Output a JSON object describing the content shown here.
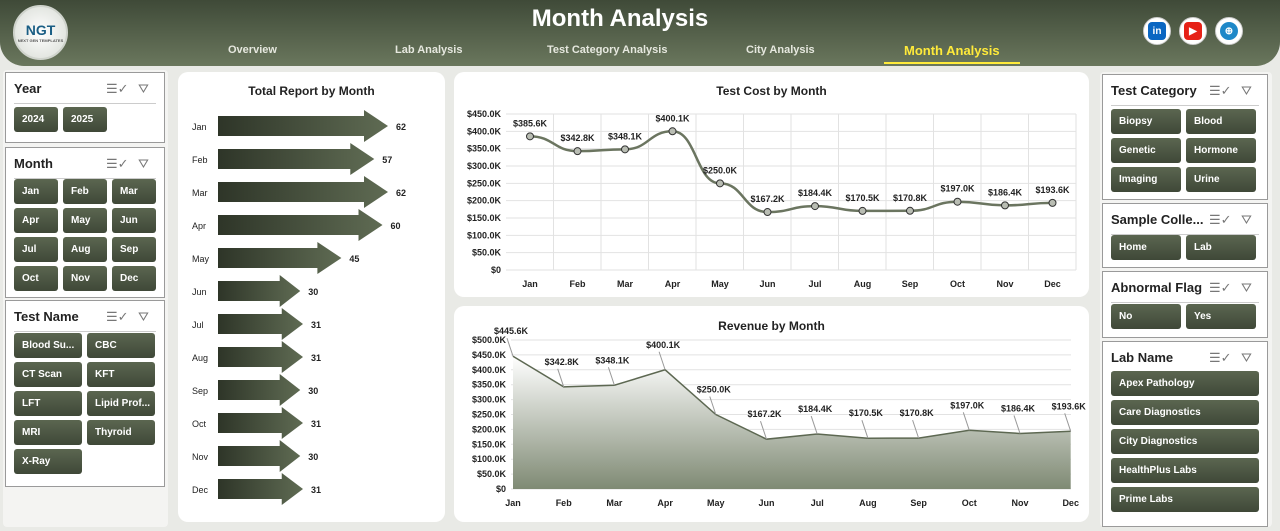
{
  "header": {
    "title": "Month Analysis",
    "logo_text": "NGT",
    "logo_sub": "NEXT GEN TEMPLATES",
    "nav": [
      {
        "label": "Overview"
      },
      {
        "label": "Lab Analysis"
      },
      {
        "label": "Test Category Analysis"
      },
      {
        "label": "City Analysis"
      },
      {
        "label": "Month Analysis",
        "active": true
      }
    ],
    "social": [
      {
        "icon": "linkedin-icon",
        "label": "in",
        "color": "#0a66c2"
      },
      {
        "icon": "youtube-icon",
        "label": "▶",
        "color": "#e62117"
      },
      {
        "icon": "globe-icon",
        "label": "⊕",
        "color": "#1e88c8"
      }
    ]
  },
  "slicers_left": [
    {
      "title": "Year",
      "items": [
        "2024",
        "2025"
      ]
    },
    {
      "title": "Month",
      "items": [
        "Jan",
        "Feb",
        "Mar",
        "Apr",
        "May",
        "Jun",
        "Jul",
        "Aug",
        "Sep",
        "Oct",
        "Nov",
        "Dec"
      ]
    },
    {
      "title": "Test Name",
      "items": [
        "Blood Su...",
        "CBC",
        "CT Scan",
        "KFT",
        "LFT",
        "Lipid Prof...",
        "MRI",
        "Thyroid",
        "X-Ray"
      ]
    }
  ],
  "slicers_right": [
    {
      "title": "Test Category",
      "items": [
        "Biopsy",
        "Blood",
        "Genetic",
        "Hormone",
        "Imaging",
        "Urine"
      ]
    },
    {
      "title": "Sample Colle...",
      "items": [
        "Home",
        "Lab"
      ]
    },
    {
      "title": "Abnormal Flag",
      "items": [
        "No",
        "Yes"
      ]
    },
    {
      "title": "Lab Name",
      "items": [
        "Apex Pathology",
        "Care Diagnostics",
        "City Diagnostics",
        "HealthPlus Labs",
        "Prime Labs"
      ]
    }
  ],
  "chart_data": [
    {
      "type": "bar",
      "title": "Total Report by Month",
      "orientation": "horizontal",
      "categories": [
        "Jan",
        "Feb",
        "Mar",
        "Apr",
        "May",
        "Jun",
        "Jul",
        "Aug",
        "Sep",
        "Oct",
        "Nov",
        "Dec"
      ],
      "values": [
        62,
        57,
        62,
        60,
        45,
        30,
        31,
        31,
        30,
        31,
        30,
        31
      ],
      "color": "#3f4838"
    },
    {
      "type": "line",
      "title": "Test Cost by Month",
      "categories": [
        "Jan",
        "Feb",
        "Mar",
        "Apr",
        "May",
        "Jun",
        "Jul",
        "Aug",
        "Sep",
        "Oct",
        "Nov",
        "Dec"
      ],
      "values": [
        385.6,
        342.8,
        348.1,
        400.1,
        250.0,
        167.2,
        184.4,
        170.5,
        170.8,
        197.0,
        186.4,
        193.6
      ],
      "labels": [
        "$385.6K",
        "$342.8K",
        "$348.1K",
        "$400.1K",
        "$250.0K",
        "$167.2K",
        "$184.4K",
        "$170.5K",
        "$170.8K",
        "$197.0K",
        "$186.4K",
        "$193.6K"
      ],
      "yticks": [
        "$0",
        "$50.0K",
        "$100.0K",
        "$150.0K",
        "$200.0K",
        "$250.0K",
        "$300.0K",
        "$350.0K",
        "$400.0K",
        "$450.0K"
      ],
      "ylim": [
        0,
        450
      ],
      "grid": true
    },
    {
      "type": "area",
      "title": "Revenue by Month",
      "categories": [
        "Jan",
        "Feb",
        "Mar",
        "Apr",
        "May",
        "Jun",
        "Jul",
        "Aug",
        "Sep",
        "Oct",
        "Nov",
        "Dec"
      ],
      "values": [
        445.6,
        342.8,
        348.1,
        400.1,
        250.0,
        167.2,
        184.4,
        170.5,
        170.8,
        197.0,
        186.4,
        193.6
      ],
      "labels": [
        "$445.6K",
        "$342.8K",
        "$348.1K",
        "$400.1K",
        "$250.0K",
        "$167.2K",
        "$184.4K",
        "$170.5K",
        "$170.8K",
        "$197.0K",
        "$186.4K",
        "$193.6K"
      ],
      "yticks": [
        "$0",
        "$50.0K",
        "$100.0K",
        "$150.0K",
        "$200.0K",
        "$250.0K",
        "$300.0K",
        "$350.0K",
        "$400.0K",
        "$450.0K",
        "$500.0K"
      ],
      "ylim": [
        0,
        500
      ],
      "grid": true
    }
  ]
}
